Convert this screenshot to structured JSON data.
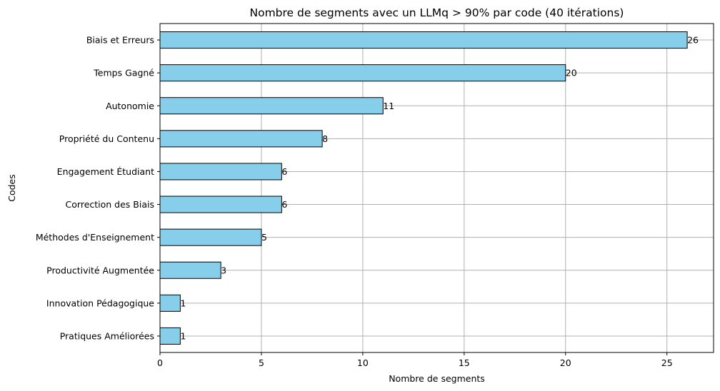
{
  "chart_data": {
    "type": "bar",
    "orientation": "horizontal",
    "title": "Nombre de segments avec un LLMq > 90% par code (40 itérations)",
    "xlabel": "Nombre de segments",
    "ylabel": "Codes",
    "categories": [
      "Biais et Erreurs",
      "Temps Gagné",
      "Autonomie",
      "Propriété du Contenu",
      "Engagement Étudiant",
      "Correction des Biais",
      "Méthodes d'Enseignement",
      "Productivité Augmentée",
      "Innovation Pédagogique",
      "Pratiques Améliorées"
    ],
    "values": [
      26,
      20,
      11,
      8,
      6,
      6,
      5,
      3,
      1,
      1
    ],
    "xlim": [
      0,
      27.3
    ],
    "xticks": [
      0,
      5,
      10,
      15,
      20,
      25
    ],
    "grid": true,
    "bar_color": "#87CEEB",
    "edge_color": "#000000",
    "grid_color": "#b0b0b0"
  }
}
